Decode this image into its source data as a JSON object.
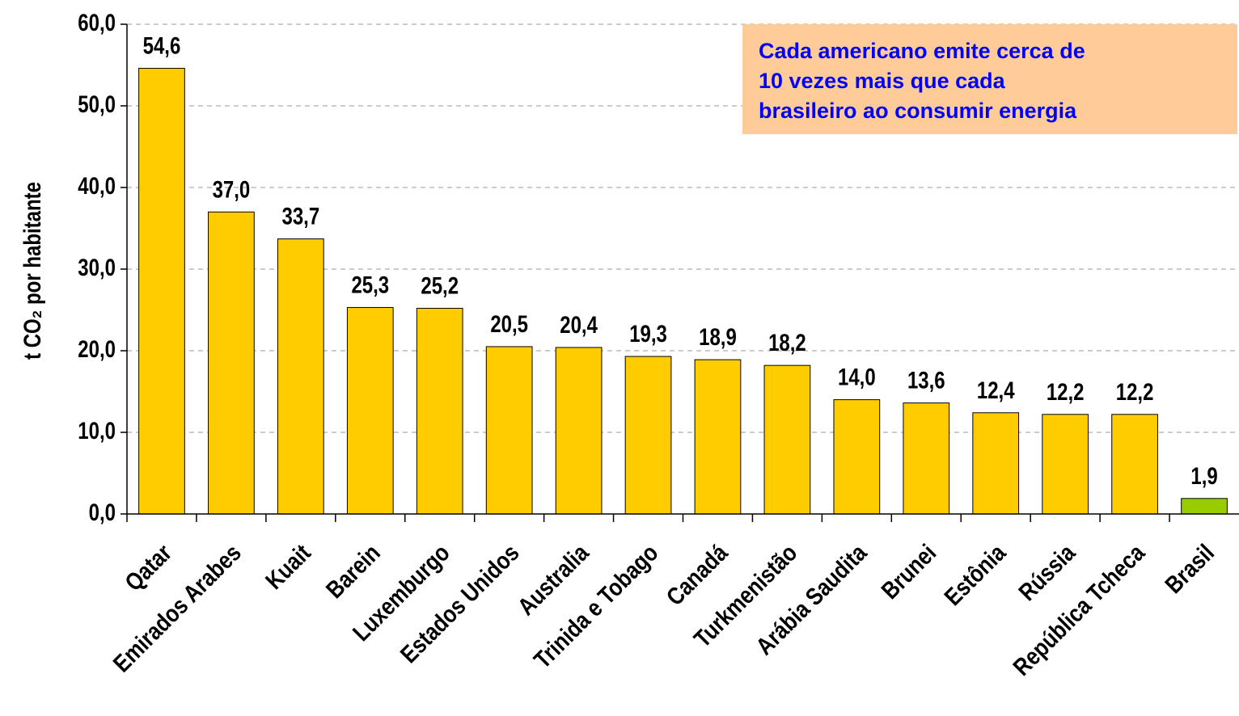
{
  "chart_data": {
    "type": "bar",
    "y_label": "t CO₂ por habitante",
    "annotation": {
      "lines": [
        "Cada americano emite cerca de",
        "10 vezes mais que cada",
        "brasileiro ao consumir energia"
      ]
    },
    "categories": [
      "Qatar",
      "Emirados Arabes",
      "Kuait",
      "Barein",
      "Luxemburgo",
      "Estados Unidos",
      "Australia",
      "Trinida e Tobago",
      "Canadá",
      "Turkmenistão",
      "Arábia Saudita",
      "Brunei",
      "Estônia",
      "Rússia",
      "República Tcheca",
      "Brasil"
    ],
    "values": [
      54.6,
      37.0,
      33.7,
      25.3,
      25.2,
      20.5,
      20.4,
      19.3,
      18.9,
      18.2,
      14.0,
      13.6,
      12.4,
      12.2,
      12.2,
      1.9
    ],
    "value_labels": [
      "54,6",
      "37,0",
      "33,7",
      "25,3",
      "25,2",
      "20,5",
      "20,4",
      "19,3",
      "18,9",
      "18,2",
      "14,0",
      "13,6",
      "12,4",
      "12,2",
      "12,2",
      "1,9"
    ],
    "colors": [
      "#FFCC00",
      "#FFCC00",
      "#FFCC00",
      "#FFCC00",
      "#FFCC00",
      "#FFCC00",
      "#FFCC00",
      "#FFCC00",
      "#FFCC00",
      "#FFCC00",
      "#FFCC00",
      "#FFCC00",
      "#FFCC00",
      "#FFCC00",
      "#FFCC00",
      "#99CC00"
    ],
    "ylim": [
      0,
      60
    ],
    "yticks": [
      {
        "value": 0,
        "label": "0,0"
      },
      {
        "value": 10,
        "label": "10,0"
      },
      {
        "value": 20,
        "label": "20,0"
      },
      {
        "value": 30,
        "label": "30,0"
      },
      {
        "value": 40,
        "label": "40,0"
      },
      {
        "value": 50,
        "label": "50,0"
      },
      {
        "value": 60,
        "label": "60,0"
      }
    ],
    "grid": true
  }
}
